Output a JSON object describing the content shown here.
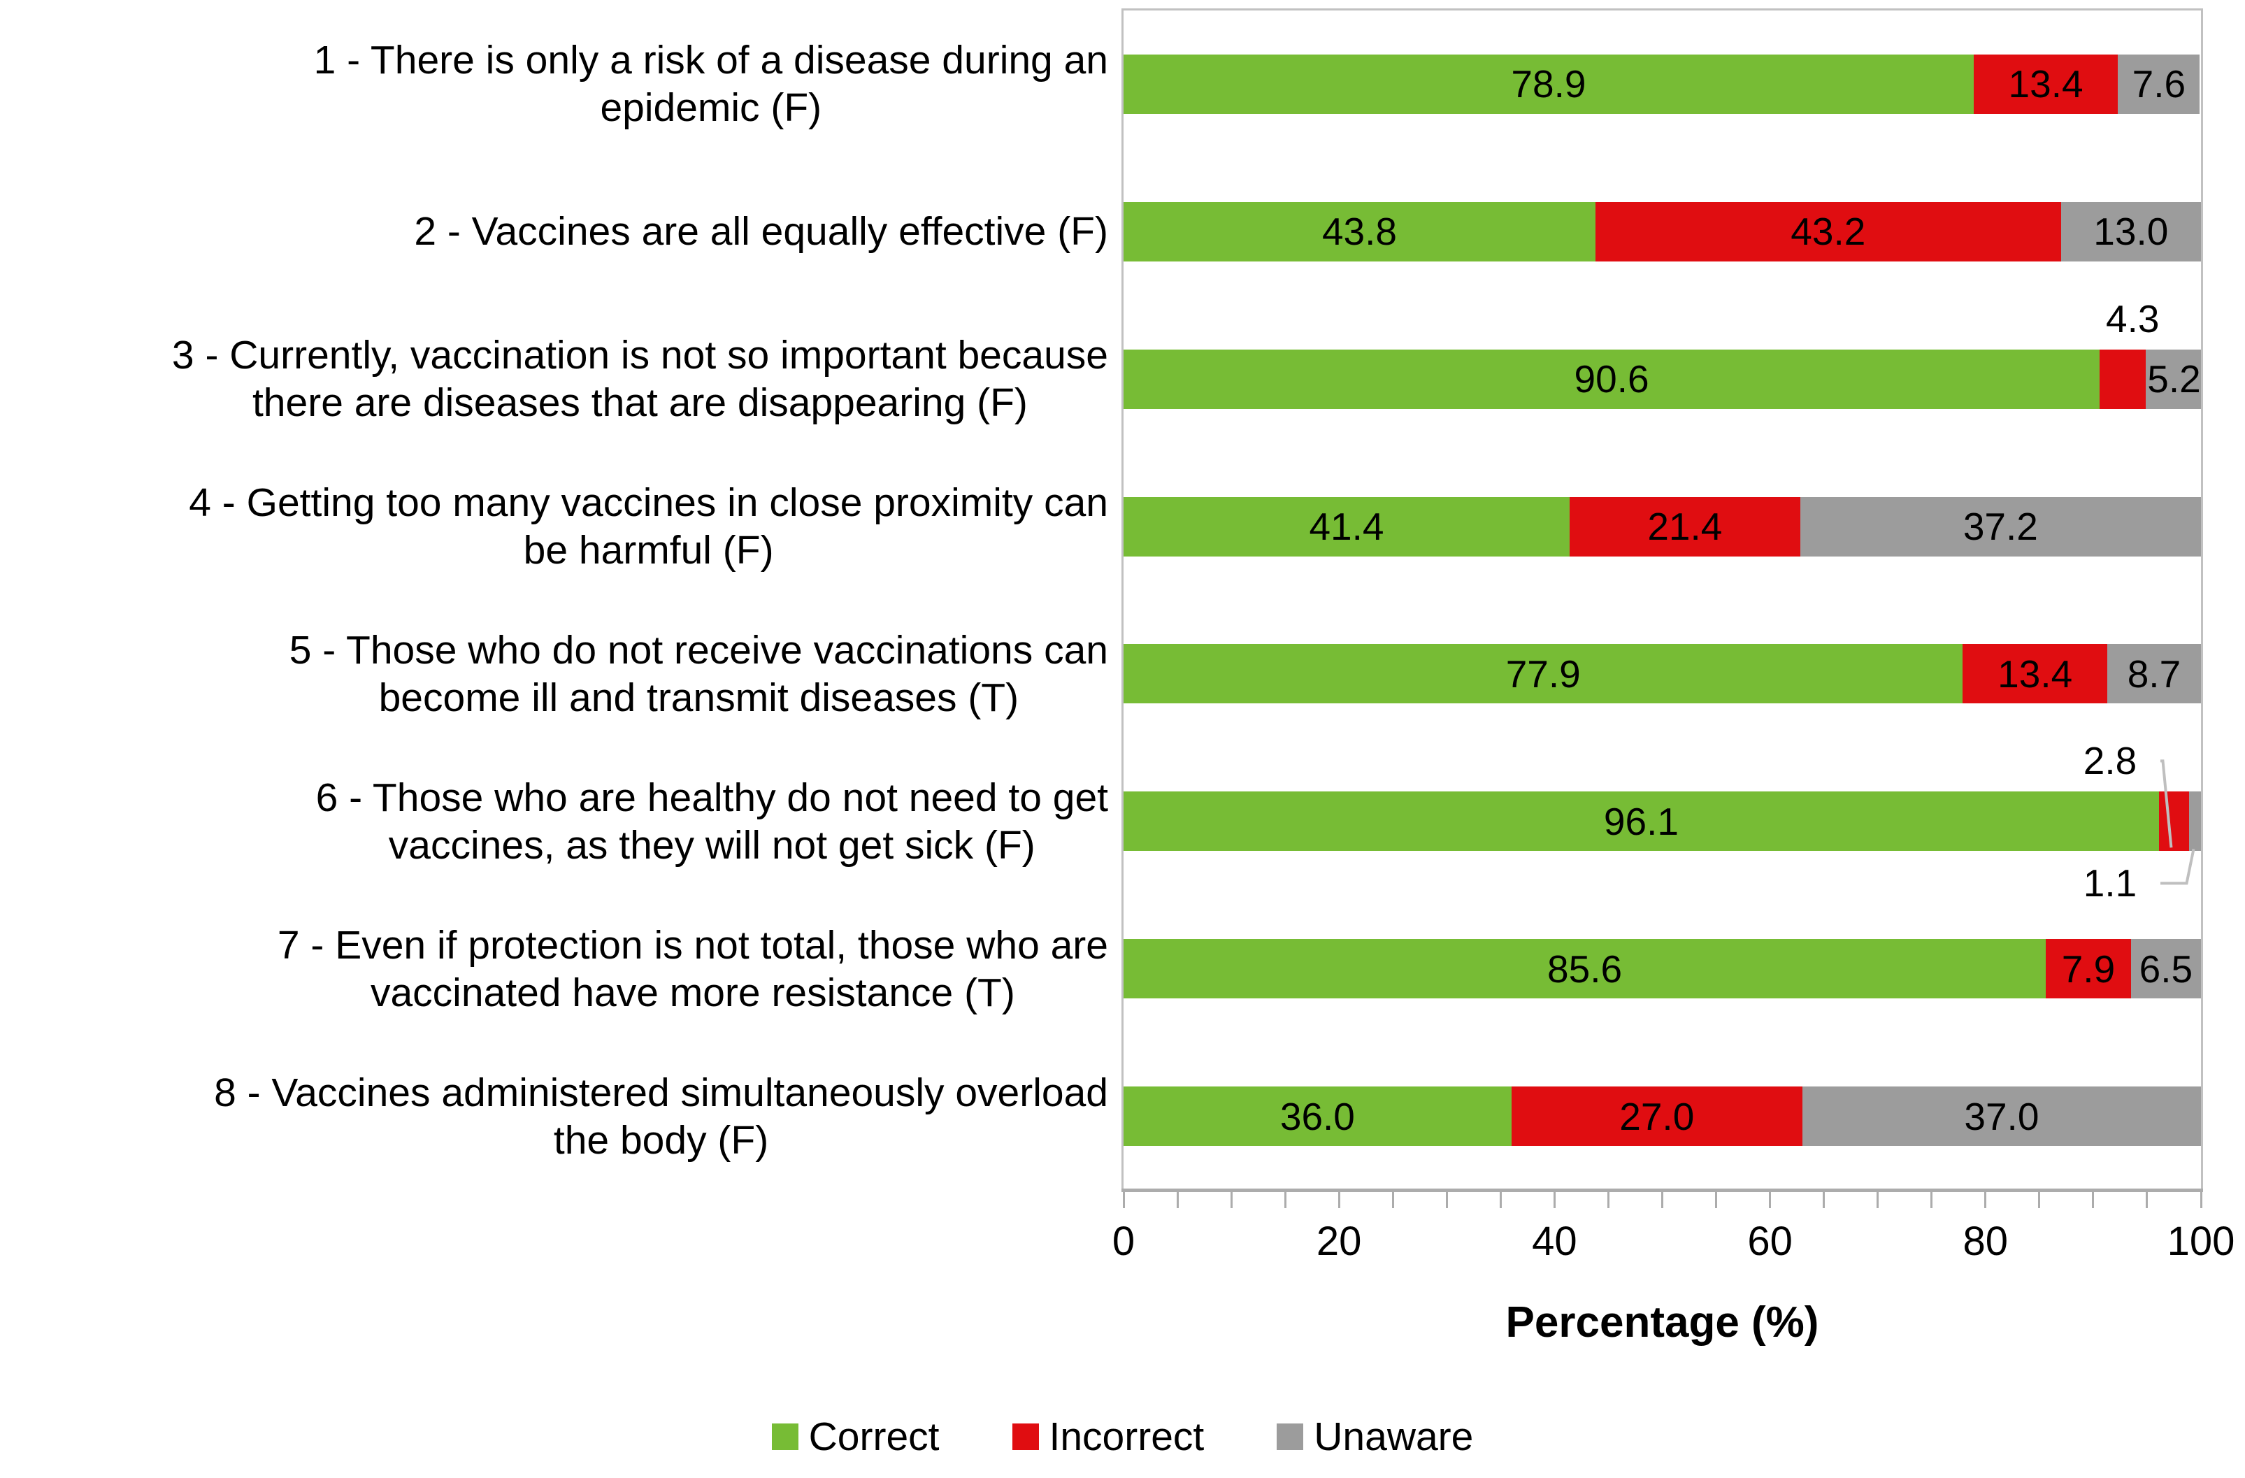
{
  "chart_data": {
    "type": "bar",
    "orientation": "horizontal",
    "stacked": true,
    "title": "",
    "xlabel": "Percentage (%)",
    "ylabel": "",
    "xlim": [
      0,
      100
    ],
    "x_ticks": [
      0,
      20,
      40,
      60,
      80,
      100
    ],
    "x_minor_tick_step": 5,
    "grid": false,
    "legend_position": "bottom",
    "categories": [
      "1 - There is only a risk of a disease during an\nepidemic (F)",
      "2 - Vaccines are all equally effective (F)",
      "3 - Currently, vaccination is not so important because\nthere are diseases that are disappearing (F)",
      "4 - Getting too many vaccines in close proximity can\nbe harmful (F)",
      "5 - Those who do not receive vaccinations can\nbecome ill and transmit diseases (T)",
      "6 - Those who are healthy do not need to get\nvaccines, as they will not get sick (F)",
      "7 - Even if protection is not total, those who are\nvaccinated have more resistance (T)",
      "8 - Vaccines administered simultaneously overload\nthe body (F)"
    ],
    "series": [
      {
        "name": "Correct",
        "color": "#77BC35",
        "values": [
          78.9,
          43.8,
          90.6,
          41.4,
          77.9,
          96.1,
          85.6,
          36.0
        ]
      },
      {
        "name": "Incorrect",
        "color": "#E00D11",
        "values": [
          13.4,
          43.2,
          4.3,
          21.4,
          13.4,
          2.8,
          7.9,
          27.0
        ]
      },
      {
        "name": "Unaware",
        "color": "#9C9C9C",
        "values": [
          7.6,
          13.0,
          5.2,
          37.2,
          8.7,
          1.1,
          6.5,
          37.0
        ]
      }
    ],
    "outside_labels": [
      {
        "category_index": 2,
        "series": "Incorrect",
        "position": "above",
        "leader": false
      },
      {
        "category_index": 5,
        "series": "Incorrect",
        "position": "above",
        "leader": true
      },
      {
        "category_index": 5,
        "series": "Unaware",
        "position": "below",
        "leader": true
      }
    ]
  }
}
